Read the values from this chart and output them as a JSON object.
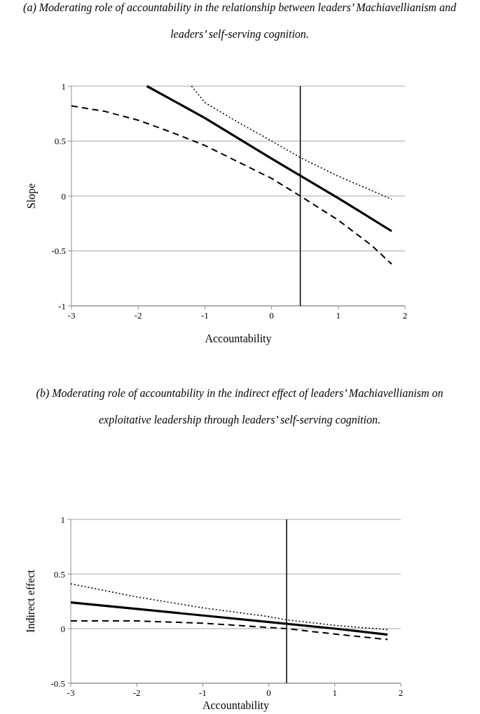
{
  "chart_data": [
    {
      "type": "line",
      "title": "(a) Moderating role of accountability in the relationship between leaders’ Machiavellianism and leaders’ self-serving cognition.",
      "xlabel": "Accountability",
      "ylabel": "Slope",
      "xlim": [
        -3,
        2
      ],
      "xticks": [
        -3,
        -2,
        -1,
        0,
        1,
        2
      ],
      "ylim": [
        -1,
        1
      ],
      "yticks": [
        -1,
        -0.5,
        0,
        0.5,
        1
      ],
      "grid": "y",
      "ref_lines": [
        {
          "axis": "x",
          "value": 0.43,
          "color": "#000000"
        }
      ],
      "series": [
        {
          "color": "#000000",
          "line_style": "solid",
          "x": [
            -1.87,
            -1,
            0,
            1,
            1.8
          ],
          "values": [
            1,
            0.71,
            0.34,
            -0.02,
            -0.32
          ]
        },
        {
          "color": "#000000",
          "line_style": "dotted",
          "x": [
            -1.2,
            -1,
            -0.5,
            0,
            0.43,
            1,
            1.5,
            1.8
          ],
          "values": [
            1,
            0.85,
            0.67,
            0.5,
            0.35,
            0.18,
            0.05,
            -0.03
          ]
        },
        {
          "color": "#000000",
          "line_style": "dashed",
          "x": [
            -3,
            -2.5,
            -2,
            -1.5,
            -1,
            -0.5,
            0,
            0.43,
            1,
            1.5,
            1.8
          ],
          "values": [
            0.82,
            0.77,
            0.69,
            0.58,
            0.46,
            0.31,
            0.16,
            0,
            -0.22,
            -0.45,
            -0.62
          ]
        }
      ]
    },
    {
      "type": "line",
      "title": "(b) Moderating role of accountability in the indirect effect of leaders’ Machiavellianism on exploitative leadership through leaders’ self-serving cognition.",
      "xlabel": "Accountability",
      "ylabel": "Indirect effect",
      "xlim": [
        -3,
        2
      ],
      "xticks": [
        -3,
        -2,
        -1,
        0,
        1,
        2
      ],
      "ylim": [
        -0.5,
        1
      ],
      "yticks": [
        -0.5,
        0,
        0.5,
        1
      ],
      "grid": "y",
      "ref_lines": [
        {
          "axis": "x",
          "value": 0.27,
          "color": "#000000"
        }
      ],
      "series": [
        {
          "color": "#000000",
          "line_style": "solid",
          "x": [
            -3,
            -2,
            -1,
            0,
            1,
            1.8
          ],
          "values": [
            0.24,
            0.18,
            0.12,
            0.06,
            0,
            -0.055
          ]
        },
        {
          "color": "#000000",
          "line_style": "dotted",
          "x": [
            -3,
            -2,
            -1,
            0,
            0.27,
            1,
            1.8
          ],
          "values": [
            0.41,
            0.29,
            0.19,
            0.11,
            0.08,
            0.03,
            -0.01
          ]
        },
        {
          "color": "#000000",
          "line_style": "dashed",
          "x": [
            -3,
            -2,
            -1,
            0,
            0.27,
            1,
            1.8
          ],
          "values": [
            0.07,
            0.07,
            0.05,
            0.01,
            0,
            -0.05,
            -0.1
          ]
        }
      ]
    }
  ]
}
